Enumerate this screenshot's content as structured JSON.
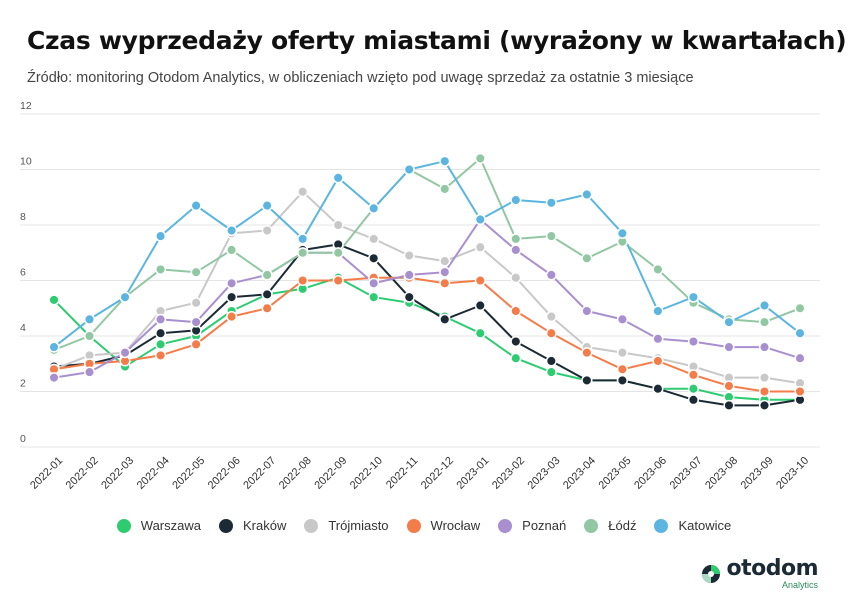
{
  "header": {
    "title": "Czas wyprzedaży oferty miastami (wyrażony w kwartałach)",
    "subtitle": "Źródło: monitoring Otodom Analytics, w obliczeniach wzięto pod uwagę sprzedaż za ostatnie 3 miesiące"
  },
  "logo": {
    "word": "otodom",
    "sub": "Analytics",
    "icon": "otodom-logo-icon"
  },
  "chart_data": {
    "type": "line",
    "title": "Czas wyprzedaży oferty miastami (wyrażony w kwartałach)",
    "subtitle": "Źródło: monitoring Otodom Analytics, w obliczeniach wzięto pod uwagę sprzedaż za ostatnie 3 miesiące",
    "xlabel": "",
    "ylabel": "",
    "ylim": [
      0,
      12
    ],
    "yticks": [
      0,
      2,
      4,
      6,
      8,
      10,
      12
    ],
    "grid": true,
    "legend_position": "bottom",
    "categories": [
      "2022-01",
      "2022-02",
      "2022-03",
      "2022-04",
      "2022-05",
      "2022-06",
      "2022-07",
      "2022-08",
      "2022-09",
      "2022-10",
      "2022-11",
      "2022-12",
      "2023-01",
      "2023-02",
      "2023-03",
      "2023-04",
      "2023-05",
      "2023-06",
      "2023-07",
      "2023-08",
      "2023-09",
      "2023-10"
    ],
    "series": [
      {
        "name": "Warszawa",
        "color": "#2ecc71",
        "values": [
          5.3,
          4.0,
          2.9,
          3.7,
          4.0,
          4.9,
          5.5,
          5.7,
          6.1,
          5.4,
          5.2,
          4.7,
          4.1,
          3.2,
          2.7,
          2.4,
          2.4,
          2.1,
          2.1,
          1.8,
          1.7,
          1.7
        ]
      },
      {
        "name": "Kraków",
        "color": "#1b2a35",
        "values": [
          2.9,
          3.0,
          3.3,
          4.1,
          4.2,
          5.4,
          5.5,
          7.1,
          7.3,
          6.8,
          5.4,
          4.6,
          5.1,
          3.8,
          3.1,
          2.4,
          2.4,
          2.1,
          1.7,
          1.5,
          1.5,
          1.7
        ]
      },
      {
        "name": "Trójmiasto",
        "color": "#c8c8c8",
        "values": [
          2.8,
          3.3,
          3.4,
          4.9,
          5.2,
          7.7,
          7.8,
          9.2,
          8.0,
          7.5,
          6.9,
          6.7,
          7.2,
          6.1,
          4.7,
          3.6,
          3.4,
          3.2,
          2.9,
          2.5,
          2.5,
          2.3
        ]
      },
      {
        "name": "Wrocław",
        "color": "#f47c48",
        "values": [
          2.8,
          3.0,
          3.1,
          3.3,
          3.7,
          4.7,
          5.0,
          6.0,
          6.0,
          6.1,
          6.1,
          5.9,
          6.0,
          4.9,
          4.1,
          3.4,
          2.8,
          3.1,
          2.6,
          2.2,
          2.0,
          2.0
        ]
      },
      {
        "name": "Poznań",
        "color": "#a88fcf",
        "values": [
          2.5,
          2.7,
          3.4,
          4.6,
          4.5,
          5.9,
          6.2,
          7.0,
          7.0,
          5.9,
          6.2,
          6.3,
          8.2,
          7.1,
          6.2,
          4.9,
          4.6,
          3.9,
          3.8,
          3.6,
          3.6,
          3.2
        ]
      },
      {
        "name": "Łódź",
        "color": "#92c7a3",
        "values": [
          3.5,
          4.0,
          5.4,
          6.4,
          6.3,
          7.1,
          6.2,
          7.0,
          7.0,
          8.6,
          10.0,
          9.3,
          10.4,
          7.5,
          7.6,
          6.8,
          7.4,
          6.4,
          5.2,
          4.6,
          4.5,
          5.0
        ]
      },
      {
        "name": "Katowice",
        "color": "#5bb5e0",
        "values": [
          3.6,
          4.6,
          5.4,
          7.6,
          8.7,
          7.8,
          8.7,
          7.5,
          9.7,
          8.6,
          10.0,
          10.3,
          8.2,
          8.9,
          8.8,
          9.1,
          7.7,
          4.9,
          5.4,
          4.5,
          5.1,
          4.1
        ]
      }
    ]
  }
}
